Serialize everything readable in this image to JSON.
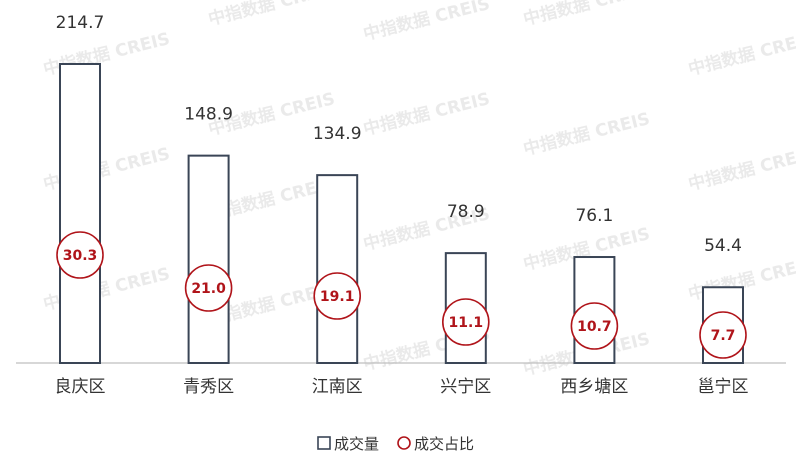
{
  "watermark": "中指数据 CREIS",
  "colors": {
    "bar_stroke": "#3a4556",
    "bar_fill": "#ffffff",
    "circle_stroke": "#b0141a",
    "circle_text": "#b0141a",
    "text": "#333333",
    "axis": "#bfbfbf"
  },
  "chart_data": {
    "type": "bar",
    "categories": [
      "良庆区",
      "青秀区",
      "江南区",
      "兴宁区",
      "西乡塘区",
      "邕宁区"
    ],
    "series": [
      {
        "name": "成交量",
        "kind": "bar",
        "values": [
          214.7,
          148.9,
          134.9,
          78.9,
          76.1,
          54.4
        ]
      },
      {
        "name": "成交占比",
        "kind": "circle-marker",
        "values": [
          30.3,
          21.0,
          19.1,
          11.1,
          10.7,
          7.7
        ]
      }
    ],
    "ylim": [
      0,
      214.7
    ],
    "grid": false,
    "legend": "bottom-center"
  },
  "legend": [
    {
      "label": "成交量",
      "marker": "square"
    },
    {
      "label": "成交占比",
      "marker": "circle"
    }
  ]
}
